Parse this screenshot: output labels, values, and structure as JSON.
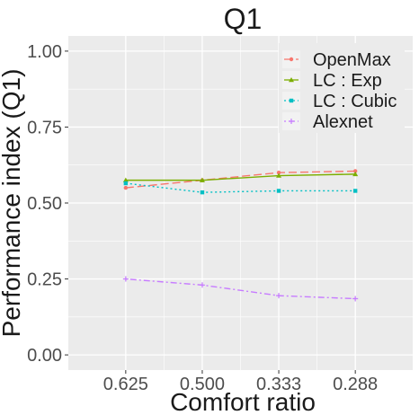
{
  "chart_data": {
    "type": "line",
    "title": "Q1",
    "xlabel": "Comfort ratio",
    "ylabel": "Performance index (Q1)",
    "categories": [
      "0.625",
      "0.500",
      "0.333",
      "0.288"
    ],
    "ylim": [
      -0.05,
      1.05
    ],
    "yticks": [
      0.0,
      0.25,
      0.5,
      0.75,
      1.0
    ],
    "ytick_labels": [
      "0.00",
      "0.25",
      "0.50",
      "0.75",
      "1.00"
    ],
    "grid": true,
    "legend_position": "top-right",
    "series": [
      {
        "name": "OpenMax",
        "values": [
          0.55,
          0.575,
          0.6,
          0.605
        ],
        "color": "#F8766D",
        "dash": "longdash",
        "marker": "circle"
      },
      {
        "name": "LC : Exp",
        "values": [
          0.575,
          0.575,
          0.59,
          0.595
        ],
        "color": "#7CAE00",
        "dash": "solid",
        "marker": "triangle"
      },
      {
        "name": "LC : Cubic",
        "values": [
          0.565,
          0.535,
          0.54,
          0.54
        ],
        "color": "#00BFC4",
        "dash": "dotted",
        "marker": "square"
      },
      {
        "name": "Alexnet",
        "values": [
          0.25,
          0.23,
          0.195,
          0.185
        ],
        "color": "#C77CFF",
        "dash": "dotdash",
        "marker": "plus"
      }
    ]
  }
}
